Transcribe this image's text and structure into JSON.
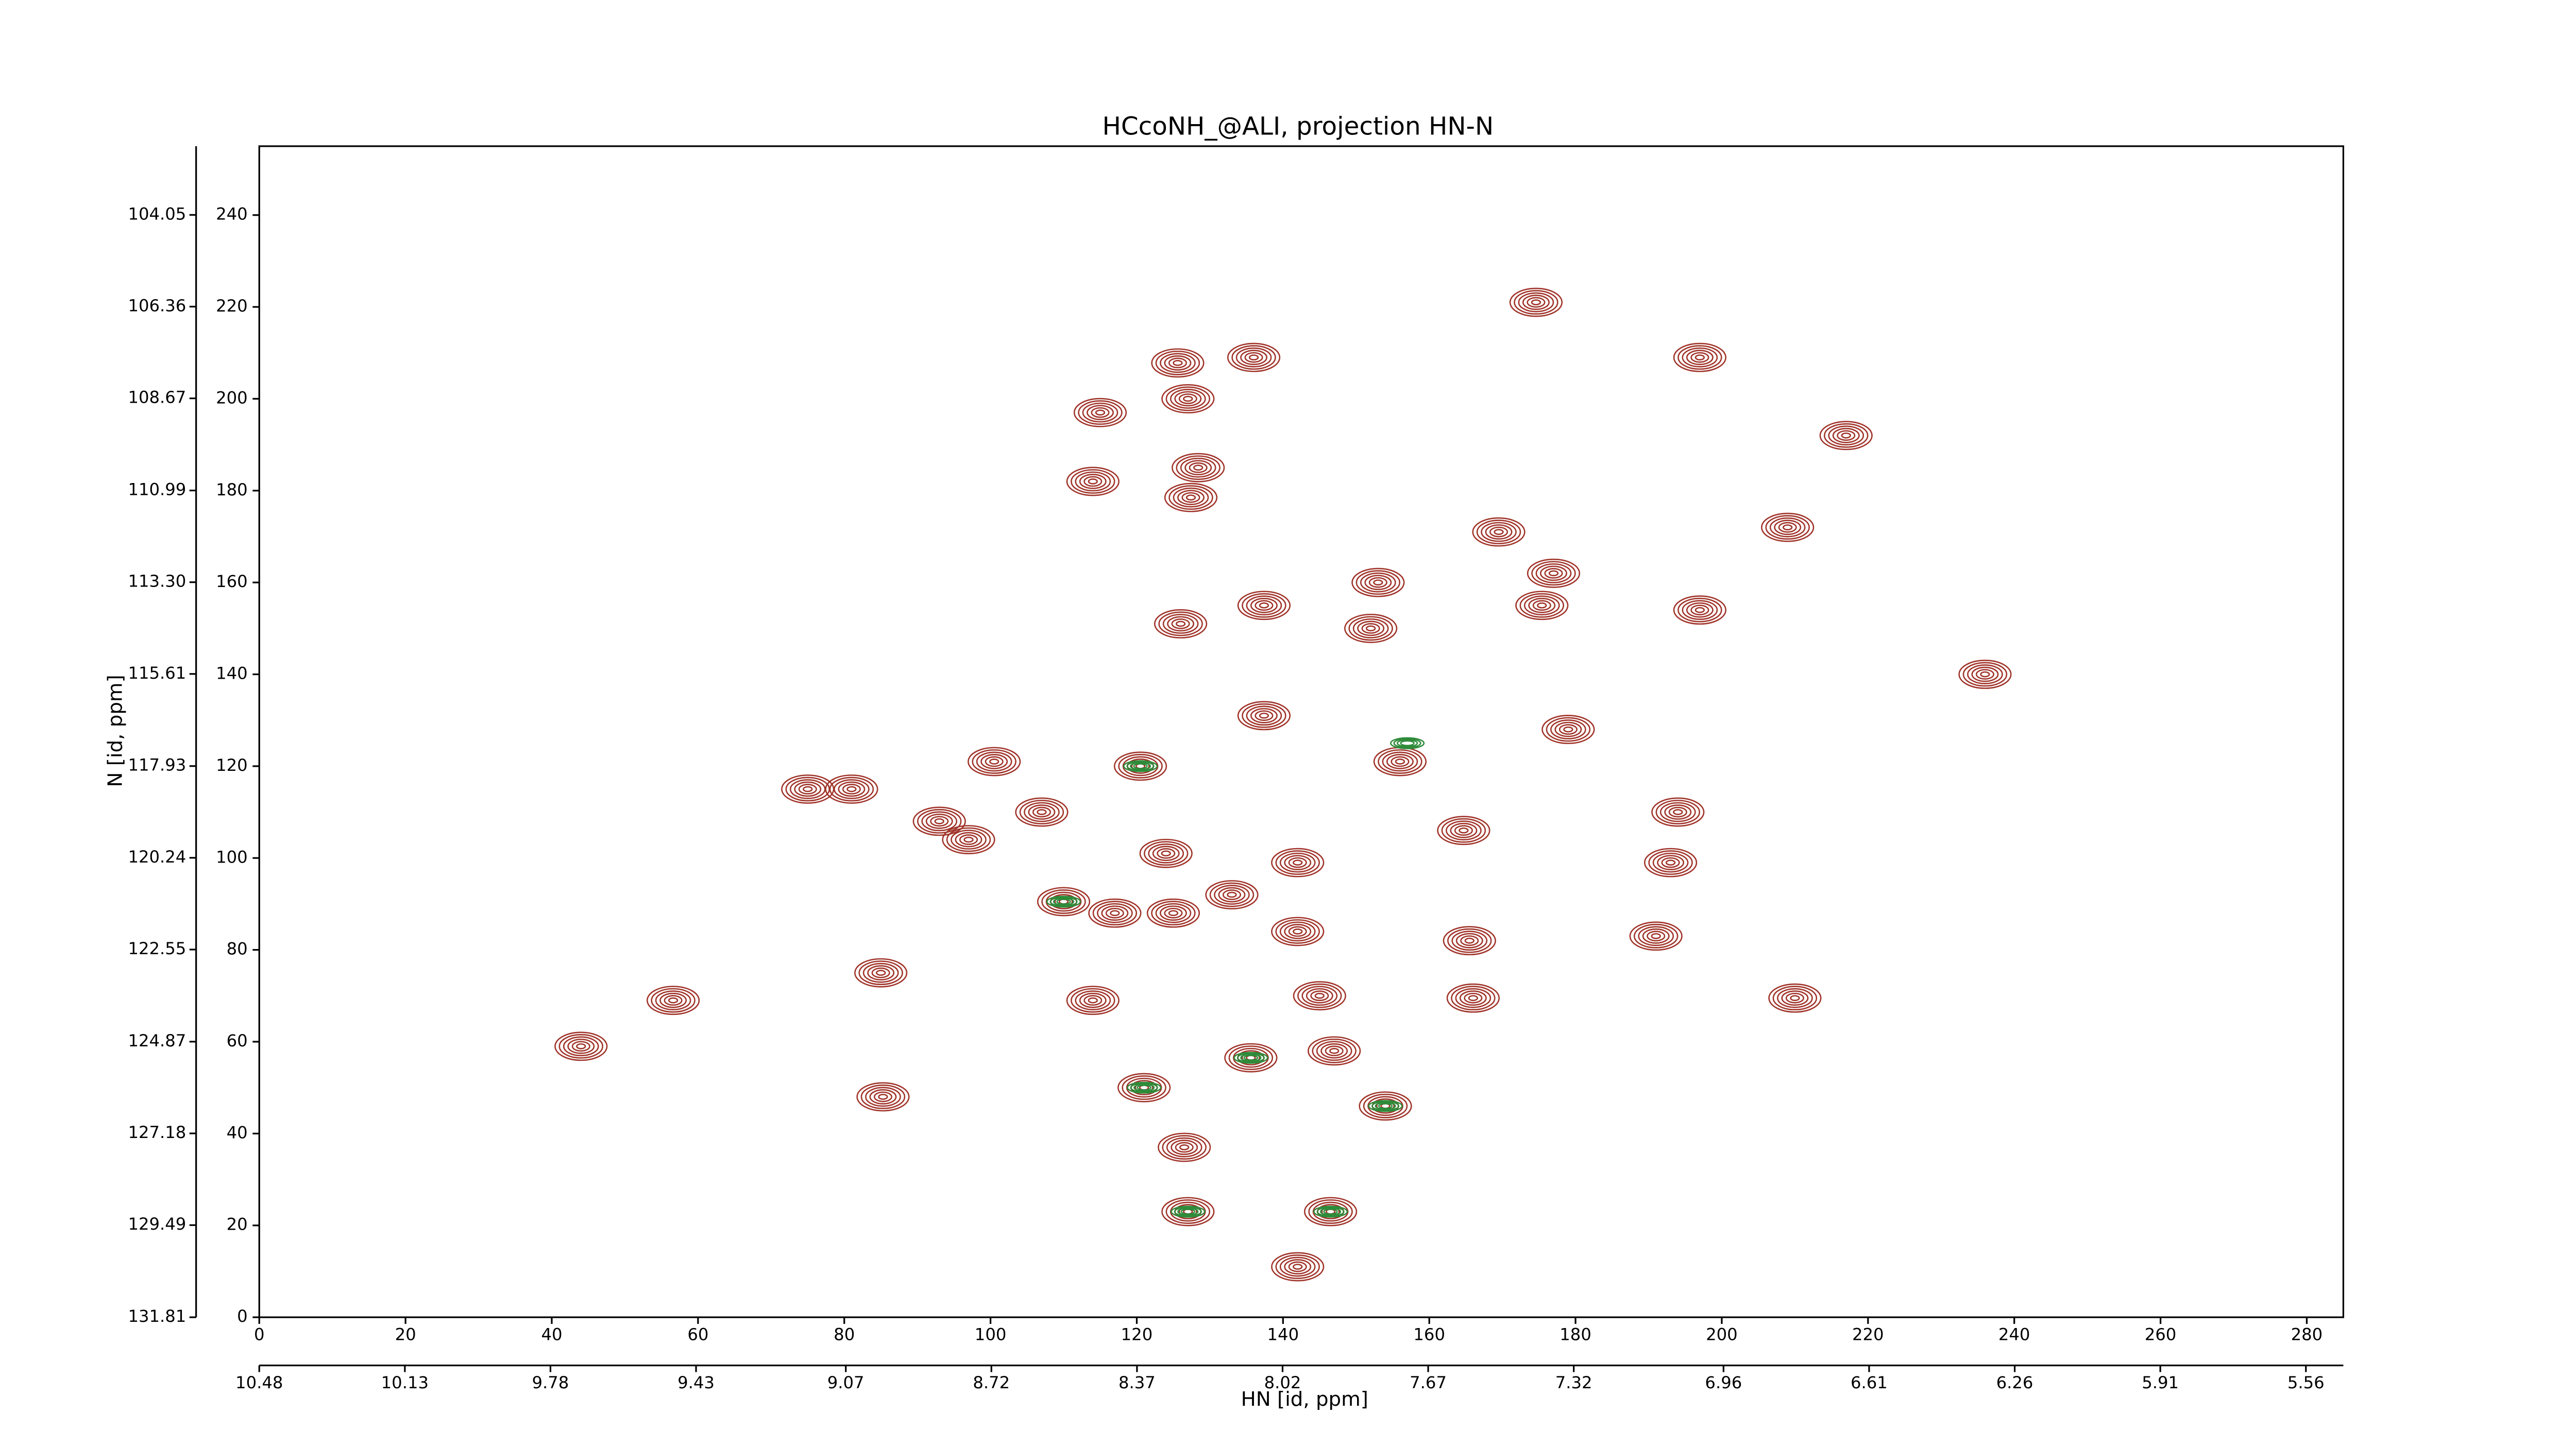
{
  "chart_data": {
    "type": "contour",
    "title": "HCcoNH_@ALI, projection HN-N",
    "xlabel": "HN [id, ppm]",
    "ylabel": "N [id, ppm]",
    "xlim": [
      0,
      285
    ],
    "ylim": [
      0,
      255
    ],
    "xticks": [
      0,
      20,
      40,
      60,
      80,
      100,
      120,
      140,
      160,
      180,
      200,
      220,
      240,
      260,
      280
    ],
    "yticks": [
      0,
      20,
      40,
      60,
      80,
      100,
      120,
      140,
      160,
      180,
      200,
      220,
      240
    ],
    "x2lim": [
      10.48,
      5.47
    ],
    "x2ticks": [
      10.48,
      10.13,
      9.78,
      9.43,
      9.07,
      8.72,
      8.37,
      8.02,
      7.67,
      7.32,
      6.96,
      6.61,
      6.26,
      5.91,
      5.56
    ],
    "y2lim": [
      131.81,
      102.32
    ],
    "y2ticks": [
      131.81,
      129.49,
      127.18,
      124.87,
      122.55,
      120.24,
      117.93,
      115.61,
      {
        "value": 113.3,
        "label": "113.30"
      },
      110.99,
      108.67,
      106.36,
      104.05
    ],
    "colors": {
      "positive": "#a0342a",
      "negative": "#2e8b3a"
    },
    "peaks": {
      "x": [
        125.6,
        136,
        174.6,
        197,
        217,
        115,
        127,
        128.4,
        114,
        127.4,
        169.5,
        209,
        177,
        175.4,
        153,
        197,
        126,
        137.4,
        152,
        236,
        137.4,
        179,
        100.5,
        120.5,
        156,
        81,
        75,
        107,
        93,
        97,
        164.7,
        194,
        124,
        142,
        193,
        110,
        117,
        125,
        133,
        142,
        165.5,
        191,
        85,
        56.6,
        145,
        166,
        210,
        44,
        135.6,
        147,
        121,
        85.3,
        154,
        126.5,
        127,
        146.5,
        142,
        114
      ],
      "y": [
        207.8,
        209,
        221,
        209,
        192,
        197,
        200,
        185,
        182,
        178.5,
        171,
        172,
        162,
        155,
        160,
        154,
        151,
        155,
        150,
        140,
        131,
        128,
        121,
        120,
        121,
        115,
        115,
        110,
        108,
        104,
        106,
        110,
        101,
        99,
        99,
        90.5,
        88,
        88,
        92,
        84,
        82,
        83,
        75,
        69,
        70,
        69.5,
        69.5,
        59,
        56.5,
        58,
        50,
        48,
        46,
        37,
        23,
        23,
        11,
        69
      ]
    },
    "negative_peaks": {
      "x": [
        120.5,
        121,
        127,
        146.5,
        154,
        135.6,
        110,
        157
      ],
      "y": [
        120,
        50,
        23,
        23,
        46,
        56.5,
        90.5,
        125
      ]
    }
  }
}
